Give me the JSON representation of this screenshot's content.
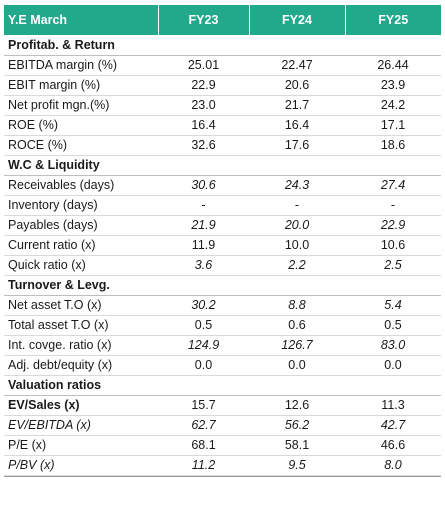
{
  "header": {
    "label": "Y.E March",
    "years": [
      "FY23",
      "FY24",
      "FY25"
    ]
  },
  "colors": {
    "header_bg": "#22a88a",
    "header_text": "#ffffff"
  },
  "rows": [
    {
      "label": "Profitab. & Return",
      "section": true
    },
    {
      "label": "EBITDA margin (%)",
      "values": [
        "25.01",
        "22.47",
        "26.44"
      ]
    },
    {
      "label": "EBIT margin (%)",
      "values": [
        "22.9",
        "20.6",
        "23.9"
      ]
    },
    {
      "label": "Net profit mgn.(%)",
      "values": [
        "23.0",
        "21.7",
        "24.2"
      ]
    },
    {
      "label": "ROE (%)",
      "values": [
        "16.4",
        "16.4",
        "17.1"
      ]
    },
    {
      "label": "ROCE (%)",
      "values": [
        "32.6",
        "17.6",
        "18.6"
      ]
    },
    {
      "label": "W.C & Liquidity",
      "section": true
    },
    {
      "label": "Receivables (days)",
      "values": [
        "30.6",
        "24.3",
        "27.4"
      ],
      "italic_values": true
    },
    {
      "label": "Inventory (days)",
      "values": [
        "-",
        "-",
        "-"
      ]
    },
    {
      "label": "Payables (days)",
      "values": [
        "21.9",
        "20.0",
        "22.9"
      ],
      "italic_values": true
    },
    {
      "label": "Current ratio (x)",
      "values": [
        "11.9",
        "10.0",
        "10.6"
      ]
    },
    {
      "label": "Quick ratio (x)",
      "values": [
        "3.6",
        "2.2",
        "2.5"
      ],
      "italic_values": true
    },
    {
      "label": "Turnover & Levg.",
      "section": true
    },
    {
      "label": "Net asset T.O (x)",
      "values": [
        "30.2",
        "8.8",
        "5.4"
      ],
      "italic_values": true
    },
    {
      "label": "Total asset T.O (x)",
      "values": [
        "0.5",
        "0.6",
        "0.5"
      ]
    },
    {
      "label": "Int. covge. ratio (x)",
      "values": [
        "124.9",
        "126.7",
        "83.0"
      ],
      "italic_values": true
    },
    {
      "label": "Adj. debt/equity (x)",
      "values": [
        "0.0",
        "0.0",
        "0.0"
      ]
    },
    {
      "label": "Valuation ratios",
      "section": true
    },
    {
      "label": "EV/Sales (x)",
      "values": [
        "15.7",
        "12.6",
        "11.3"
      ],
      "bold_label": true
    },
    {
      "label": "EV/EBITDA (x)",
      "values": [
        "62.7",
        "56.2",
        "42.7"
      ],
      "italic_label": true,
      "italic_values": true
    },
    {
      "label": "P/E (x)",
      "values": [
        "68.1",
        "58.1",
        "46.6"
      ]
    },
    {
      "label": "P/BV (x)",
      "values": [
        "11.2",
        "9.5",
        "8.0"
      ],
      "italic_label": true,
      "italic_values": true
    }
  ]
}
